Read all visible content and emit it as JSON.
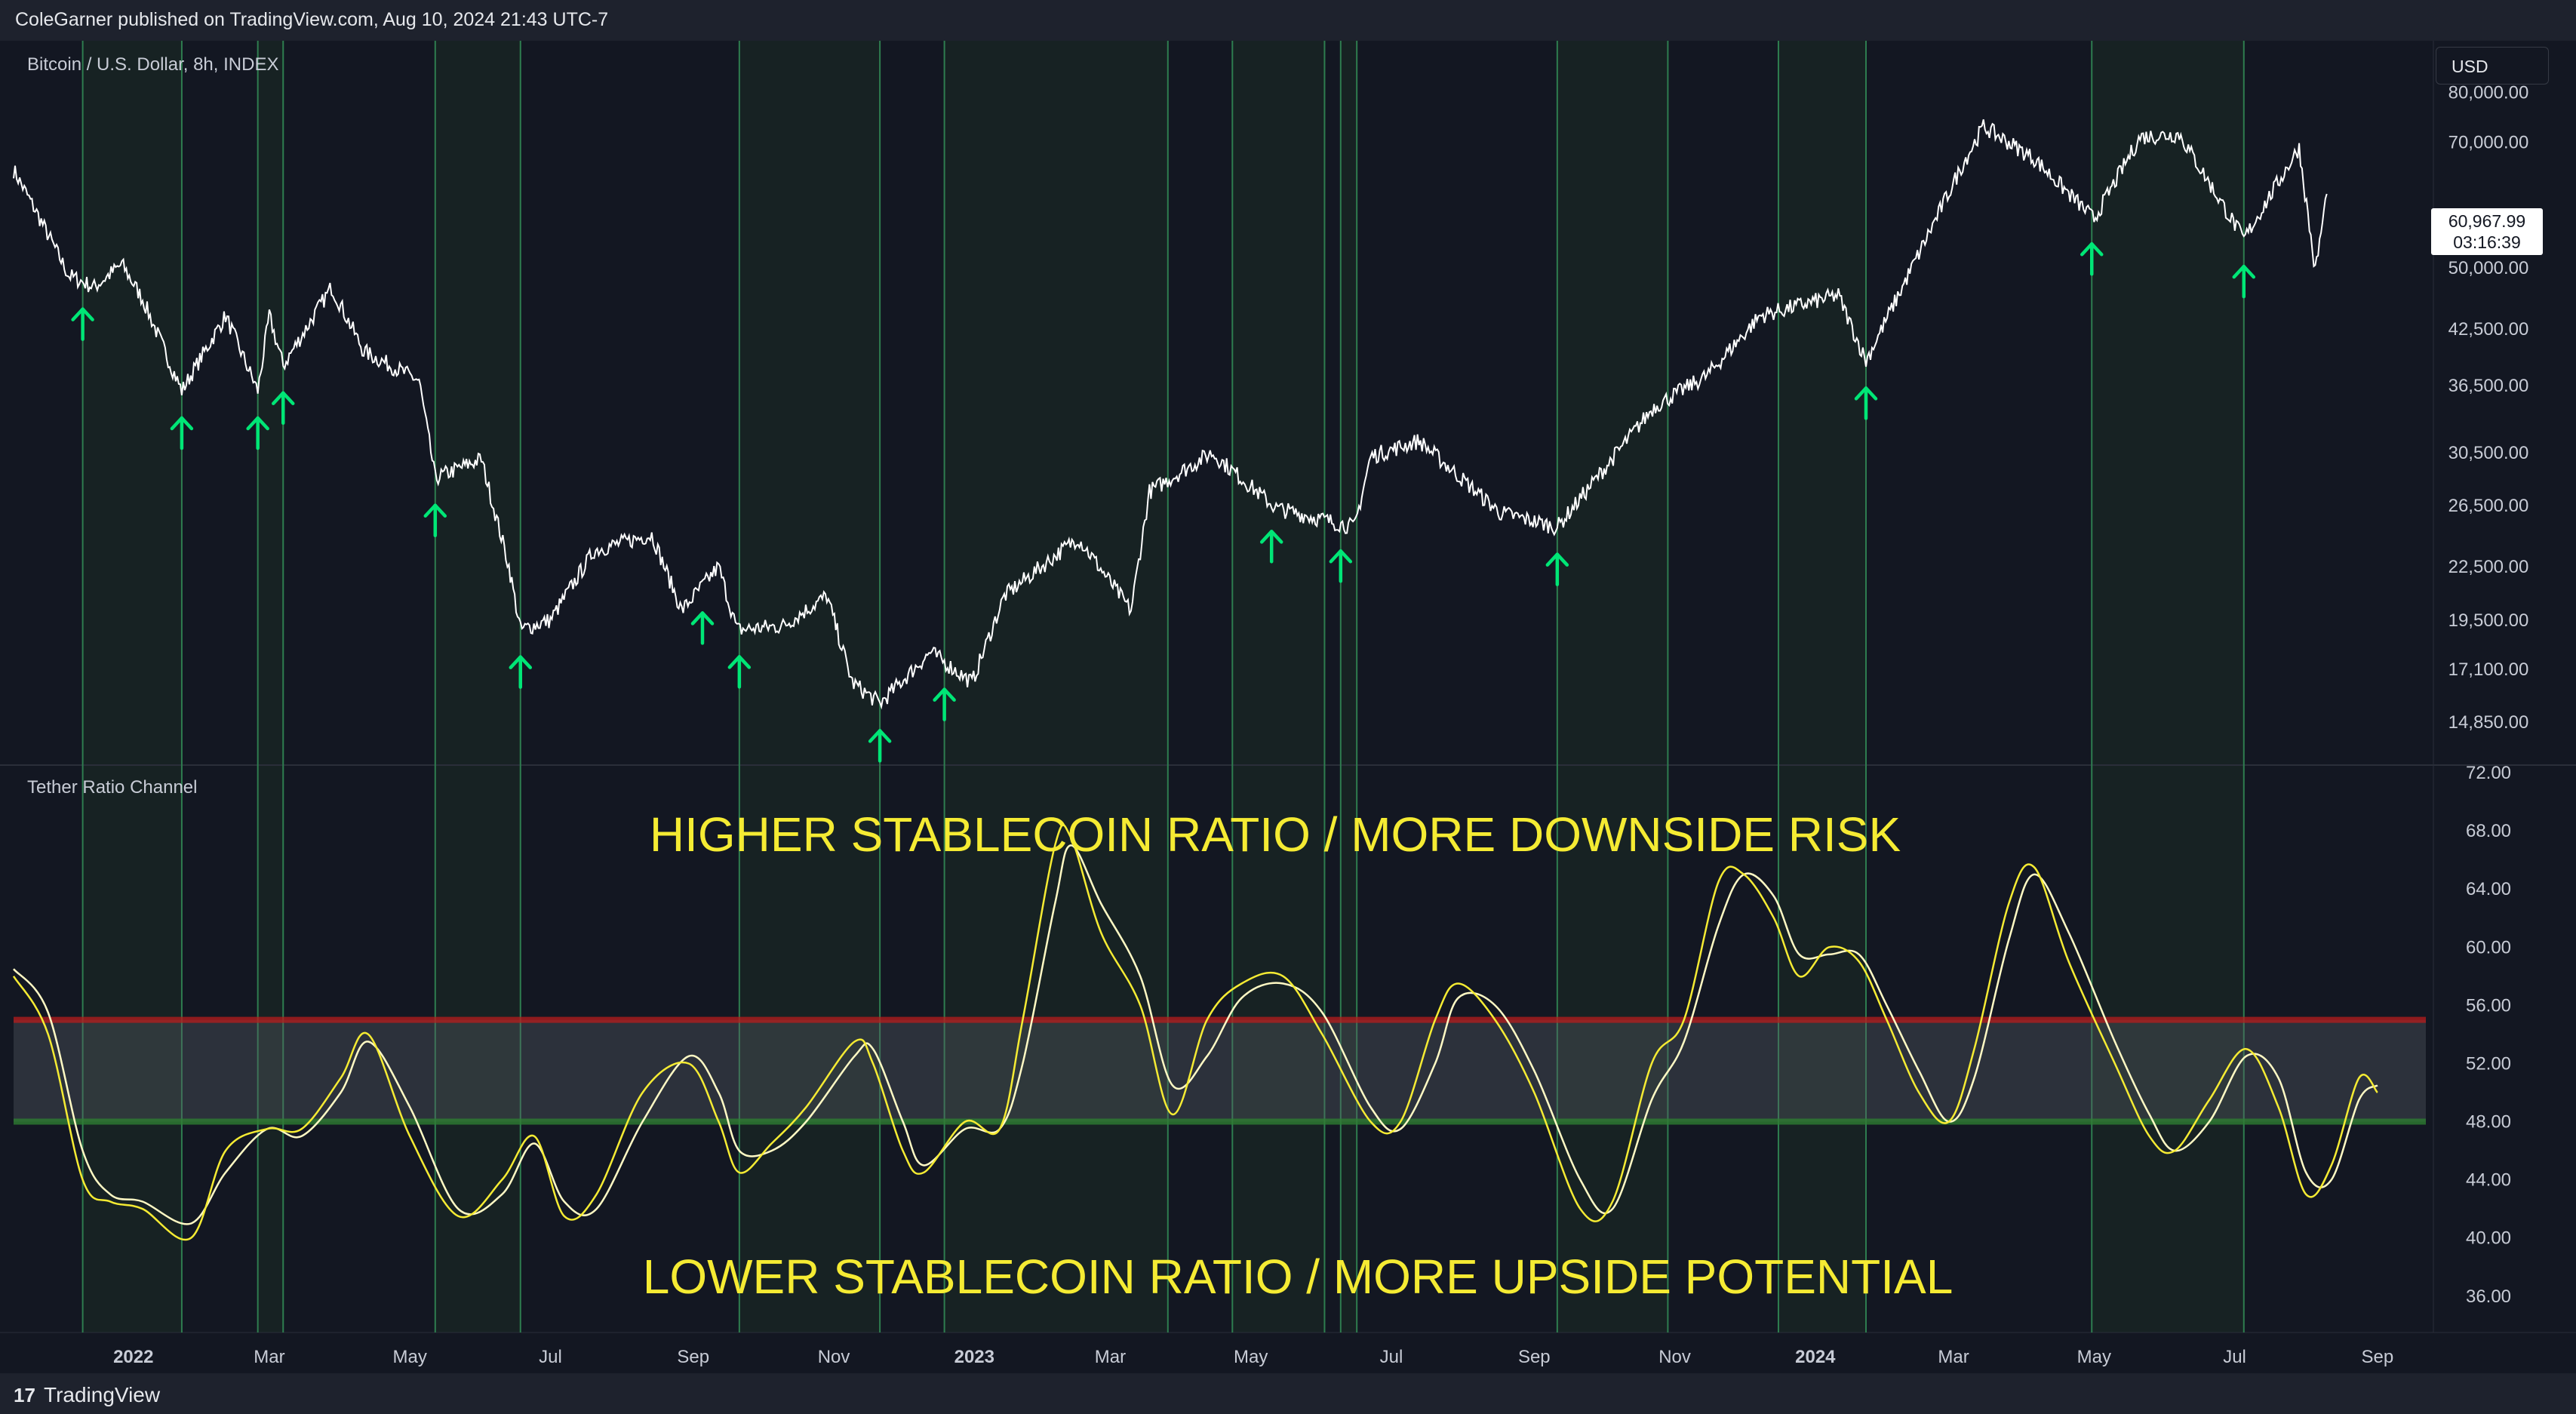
{
  "header": {
    "published_by": "ColeGarner published on TradingView.com, Aug 10, 2024 21:43 UTC-7"
  },
  "price_pane": {
    "symbol": "Bitcoin / U.S. Dollar, 8h, INDEX",
    "currency_button": "USD",
    "last_price": "60,967.99",
    "countdown": "03:16:39"
  },
  "indicator_pane": {
    "title": "Tether Ratio Channel",
    "annotation_top": "HIGHER STABLECOIN RATIO / MORE DOWNSIDE RISK",
    "annotation_bottom": "LOWER STABLECOIN RATIO / MORE UPSIDE POTENTIAL"
  },
  "footer": {
    "brand": "TradingView"
  },
  "colors": {
    "background": "#131722",
    "frame": "#1e222d",
    "price_line": "#ffffff",
    "arrow": "#00e676",
    "signal_line": "#2e7d4f",
    "channel_upper": "#b71c1c",
    "channel_lower": "#2e7d32",
    "fast_line": "#f5eb33",
    "slow_line": "#fff9c4",
    "annotation": "#f5eb33"
  },
  "chart_data": [
    {
      "type": "line",
      "title": "Bitcoin / U.S. Dollar, 8h, INDEX",
      "scale": "log",
      "y_ticks": [
        "80,000.00",
        "70,000.00",
        "50,000.00",
        "42,500.00",
        "36,500.00",
        "30,500.00",
        "26,500.00",
        "22,500.00",
        "19,500.00",
        "17,100.00",
        "14,850.00"
      ],
      "x_ticks": [
        "2022",
        "Mar",
        "May",
        "Jul",
        "Sep",
        "Nov",
        "2023",
        "Mar",
        "May",
        "Jul",
        "Sep",
        "Nov",
        "2024",
        "Mar",
        "May",
        "Jul",
        "Sep"
      ],
      "ylim": [
        13500,
        90000
      ],
      "series": [
        {
          "points": [
            [
              "2021-11-10",
              65000
            ],
            [
              "2021-11-20",
              58000
            ],
            [
              "2021-12-04",
              49000
            ],
            [
              "2021-12-15",
              47500
            ],
            [
              "2021-12-27",
              50500
            ],
            [
              "2022-01-05",
              46000
            ],
            [
              "2022-01-22",
              36000
            ],
            [
              "2022-02-10",
              44000
            ],
            [
              "2022-02-24",
              36000
            ],
            [
              "2022-03-01",
              44000
            ],
            [
              "2022-03-07",
              38500
            ],
            [
              "2022-03-28",
              47500
            ],
            [
              "2022-04-11",
              40000
            ],
            [
              "2022-05-05",
              37000
            ],
            [
              "2022-05-12",
              28500
            ],
            [
              "2022-06-01",
              30000
            ],
            [
              "2022-06-13",
              22500
            ],
            [
              "2022-06-18",
              19000
            ],
            [
              "2022-07-01",
              19500
            ],
            [
              "2022-07-20",
              23500
            ],
            [
              "2022-08-14",
              24500
            ],
            [
              "2022-08-27",
              20000
            ],
            [
              "2022-09-12",
              22500
            ],
            [
              "2022-09-20",
              19000
            ],
            [
              "2022-10-10",
              19200
            ],
            [
              "2022-10-29",
              20800
            ],
            [
              "2022-11-09",
              16500
            ],
            [
              "2022-11-21",
              15600
            ],
            [
              "2022-12-13",
              17900
            ],
            [
              "2022-12-31",
              16500
            ],
            [
              "2023-01-14",
              20800
            ],
            [
              "2023-02-15",
              24300
            ],
            [
              "2023-03-10",
              20000
            ],
            [
              "2023-03-18",
              27500
            ],
            [
              "2023-04-14",
              30500
            ],
            [
              "2023-05-12",
              26300
            ],
            [
              "2023-06-15",
              25000
            ],
            [
              "2023-06-22",
              30200
            ],
            [
              "2023-07-13",
              31500
            ],
            [
              "2023-08-17",
              26000
            ],
            [
              "2023-09-11",
              25000
            ],
            [
              "2023-10-23",
              34500
            ],
            [
              "2023-11-15",
              37500
            ],
            [
              "2023-12-08",
              44000
            ],
            [
              "2024-01-11",
              46500
            ],
            [
              "2024-01-23",
              39000
            ],
            [
              "2024-02-15",
              52000
            ],
            [
              "2024-03-05",
              66000
            ],
            [
              "2024-03-14",
              73000
            ],
            [
              "2024-04-05",
              67000
            ],
            [
              "2024-05-01",
              57000
            ],
            [
              "2024-05-21",
              71000
            ],
            [
              "2024-06-07",
              71500
            ],
            [
              "2024-07-05",
              54000
            ],
            [
              "2024-07-29",
              69000
            ],
            [
              "2024-08-05",
              49500
            ],
            [
              "2024-08-10",
              60968
            ]
          ]
        }
      ],
      "signal_dates": [
        "2021-12-10",
        "2022-01-22",
        "2022-02-24",
        "2022-03-07",
        "2022-05-12",
        "2022-06-18",
        "2022-09-05",
        "2022-09-21",
        "2022-11-21",
        "2022-12-19",
        "2023-05-10",
        "2023-06-09",
        "2023-09-11",
        "2024-01-23",
        "2024-04-30",
        "2024-07-05"
      ],
      "vertical_line_dates": [
        "2021-12-10",
        "2022-01-22",
        "2022-02-24",
        "2022-03-07",
        "2022-05-12",
        "2022-06-18",
        "2022-09-21",
        "2022-11-21",
        "2022-12-19",
        "2023-03-26",
        "2023-04-23",
        "2023-06-02",
        "2023-06-09",
        "2023-06-16",
        "2023-09-11",
        "2023-10-29",
        "2023-12-16",
        "2024-01-23",
        "2024-04-30",
        "2024-07-05"
      ]
    },
    {
      "type": "line",
      "title": "Tether Ratio Channel",
      "y_ticks": [
        "72.00",
        "68.00",
        "64.00",
        "60.00",
        "56.00",
        "52.00",
        "48.00",
        "44.00",
        "40.00",
        "36.00"
      ],
      "ylim": [
        33.5,
        72.0
      ],
      "channel": {
        "upper": 55,
        "lower": 48
      },
      "series": [
        {
          "name": "fast",
          "points": [
            [
              "2021-11-10",
              58
            ],
            [
              "2021-11-25",
              54
            ],
            [
              "2021-12-10",
              44
            ],
            [
              "2021-12-22",
              42.5
            ],
            [
              "2022-01-05",
              42
            ],
            [
              "2022-01-26",
              40
            ],
            [
              "2022-02-10",
              46
            ],
            [
              "2022-02-28",
              47.5
            ],
            [
              "2022-03-15",
              47.5
            ],
            [
              "2022-04-01",
              51
            ],
            [
              "2022-04-13",
              54
            ],
            [
              "2022-05-01",
              47
            ],
            [
              "2022-05-22",
              41.5
            ],
            [
              "2022-06-10",
              44
            ],
            [
              "2022-06-24",
              47
            ],
            [
              "2022-07-07",
              41.5
            ],
            [
              "2022-07-21",
              43
            ],
            [
              "2022-08-10",
              50
            ],
            [
              "2022-08-30",
              52
            ],
            [
              "2022-09-12",
              48
            ],
            [
              "2022-09-21",
              44.5
            ],
            [
              "2022-10-05",
              46.5
            ],
            [
              "2022-10-20",
              49
            ],
            [
              "2022-11-10",
              53.5
            ],
            [
              "2022-11-18",
              52
            ],
            [
              "2022-12-01",
              46
            ],
            [
              "2022-12-10",
              44.5
            ],
            [
              "2022-12-28",
              48
            ],
            [
              "2023-01-12",
              47.5
            ],
            [
              "2023-01-22",
              55
            ],
            [
              "2023-02-05",
              67
            ],
            [
              "2023-02-12",
              67.5
            ],
            [
              "2023-02-25",
              61
            ],
            [
              "2023-03-14",
              56
            ],
            [
              "2023-03-28",
              48.5
            ],
            [
              "2023-04-12",
              55
            ],
            [
              "2023-04-27",
              57.5
            ],
            [
              "2023-05-15",
              58
            ],
            [
              "2023-06-01",
              54
            ],
            [
              "2023-06-22",
              48
            ],
            [
              "2023-07-05",
              48
            ],
            [
              "2023-07-20",
              55
            ],
            [
              "2023-07-30",
              57.5
            ],
            [
              "2023-08-15",
              55
            ],
            [
              "2023-09-01",
              50
            ],
            [
              "2023-09-21",
              42
            ],
            [
              "2023-10-05",
              42.5
            ],
            [
              "2023-10-22",
              52
            ],
            [
              "2023-11-05",
              55
            ],
            [
              "2023-11-20",
              64.5
            ],
            [
              "2023-12-01",
              65
            ],
            [
              "2023-12-14",
              62
            ],
            [
              "2023-12-25",
              58
            ],
            [
              "2024-01-07",
              60
            ],
            [
              "2024-01-20",
              59
            ],
            [
              "2024-02-01",
              55
            ],
            [
              "2024-02-15",
              50
            ],
            [
              "2024-02-28",
              48
            ],
            [
              "2024-03-10",
              53
            ],
            [
              "2024-03-25",
              63
            ],
            [
              "2024-04-05",
              65.5
            ],
            [
              "2024-04-20",
              59
            ],
            [
              "2024-05-10",
              52
            ],
            [
              "2024-05-25",
              47
            ],
            [
              "2024-06-05",
              46
            ],
            [
              "2024-06-20",
              49.5
            ],
            [
              "2024-07-06",
              53
            ],
            [
              "2024-07-20",
              49
            ],
            [
              "2024-08-01",
              43
            ],
            [
              "2024-08-12",
              45
            ],
            [
              "2024-08-24",
              51
            ],
            [
              "2024-09-01",
              50
            ]
          ]
        },
        {
          "name": "slow",
          "points": [
            [
              "2021-11-10",
              58.5
            ],
            [
              "2021-11-25",
              55.5
            ],
            [
              "2021-12-10",
              46
            ],
            [
              "2021-12-22",
              43
            ],
            [
              "2022-01-05",
              42.5
            ],
            [
              "2022-01-26",
              41
            ],
            [
              "2022-02-10",
              44.5
            ],
            [
              "2022-02-28",
              47.5
            ],
            [
              "2022-03-15",
              47
            ],
            [
              "2022-04-01",
              50
            ],
            [
              "2022-04-13",
              53.5
            ],
            [
              "2022-05-01",
              49
            ],
            [
              "2022-05-22",
              42
            ],
            [
              "2022-06-10",
              43
            ],
            [
              "2022-06-24",
              46.5
            ],
            [
              "2022-07-07",
              42.5
            ],
            [
              "2022-07-21",
              42
            ],
            [
              "2022-08-10",
              48
            ],
            [
              "2022-08-30",
              52.5
            ],
            [
              "2022-09-12",
              50
            ],
            [
              "2022-09-21",
              46
            ],
            [
              "2022-10-05",
              46
            ],
            [
              "2022-10-20",
              48
            ],
            [
              "2022-11-10",
              52.5
            ],
            [
              "2022-11-18",
              53
            ],
            [
              "2022-12-01",
              48
            ],
            [
              "2022-12-10",
              45
            ],
            [
              "2022-12-28",
              47.5
            ],
            [
              "2023-01-12",
              47.5
            ],
            [
              "2023-01-22",
              52
            ],
            [
              "2023-02-05",
              63
            ],
            [
              "2023-02-12",
              67
            ],
            [
              "2023-02-25",
              63
            ],
            [
              "2023-03-14",
              58
            ],
            [
              "2023-03-28",
              50.5
            ],
            [
              "2023-04-12",
              52.5
            ],
            [
              "2023-04-27",
              56.5
            ],
            [
              "2023-05-15",
              57.5
            ],
            [
              "2023-06-01",
              55.5
            ],
            [
              "2023-06-22",
              49
            ],
            [
              "2023-07-05",
              47.5
            ],
            [
              "2023-07-20",
              52
            ],
            [
              "2023-07-30",
              56.5
            ],
            [
              "2023-08-15",
              56
            ],
            [
              "2023-09-01",
              51.5
            ],
            [
              "2023-09-21",
              44
            ],
            [
              "2023-10-05",
              42
            ],
            [
              "2023-10-22",
              49.5
            ],
            [
              "2023-11-05",
              53.5
            ],
            [
              "2023-11-20",
              61.5
            ],
            [
              "2023-12-01",
              65
            ],
            [
              "2023-12-14",
              63.5
            ],
            [
              "2023-12-25",
              59.5
            ],
            [
              "2024-01-07",
              59.5
            ],
            [
              "2024-01-20",
              59.5
            ],
            [
              "2024-02-01",
              56
            ],
            [
              "2024-02-15",
              51.5
            ],
            [
              "2024-02-28",
              48
            ],
            [
              "2024-03-10",
              51
            ],
            [
              "2024-03-25",
              60.5
            ],
            [
              "2024-04-05",
              65
            ],
            [
              "2024-04-20",
              61
            ],
            [
              "2024-05-10",
              53.5
            ],
            [
              "2024-05-25",
              48.5
            ],
            [
              "2024-06-05",
              46
            ],
            [
              "2024-06-20",
              48
            ],
            [
              "2024-07-06",
              52.5
            ],
            [
              "2024-07-20",
              51
            ],
            [
              "2024-08-01",
              44.5
            ],
            [
              "2024-08-12",
              44
            ],
            [
              "2024-08-24",
              49.5
            ],
            [
              "2024-09-01",
              50.5
            ]
          ]
        }
      ]
    }
  ]
}
